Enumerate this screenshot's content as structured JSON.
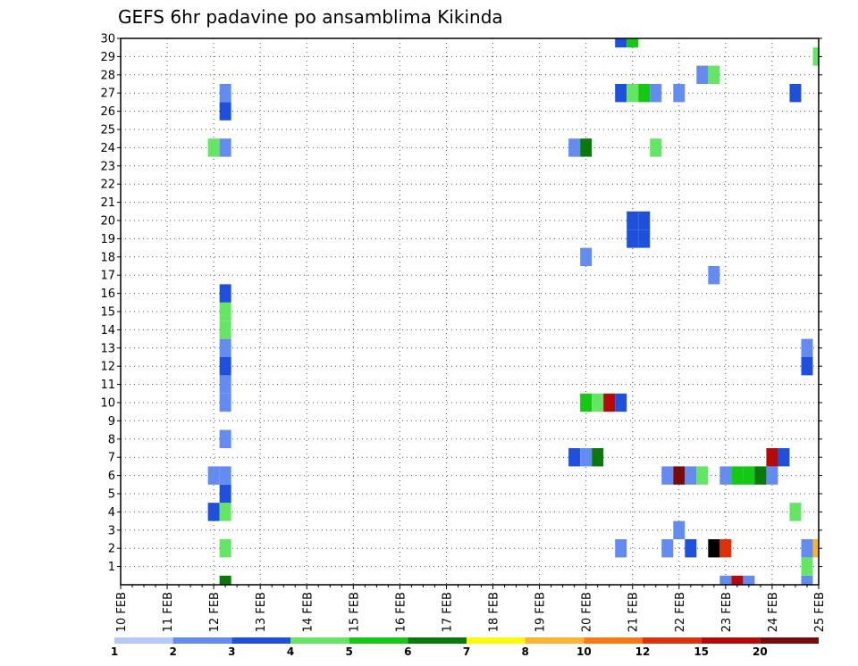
{
  "chart_data": {
    "type": "heatmap",
    "title": "GEFS 6hr padavine po ansamblima Kikinda",
    "x_ticks": [
      "10 FEB",
      "11 FEB",
      "12 FEB",
      "13 FEB",
      "14 FEB",
      "15 FEB",
      "16 FEB",
      "17 FEB",
      "18 FEB",
      "19 FEB",
      "20 FEB",
      "21 FEB",
      "22 FEB",
      "23 FEB",
      "24 FEB",
      "25 FEB"
    ],
    "x_range_days": [
      10,
      25
    ],
    "y_ticks": [
      "1",
      "2",
      "3",
      "4",
      "5",
      "6",
      "7",
      "8",
      "9",
      "10",
      "11",
      "12",
      "13",
      "14",
      "15",
      "16",
      "17",
      "18",
      "19",
      "20",
      "21",
      "22",
      "23",
      "24",
      "25",
      "26",
      "27",
      "28",
      "29",
      "30"
    ],
    "y_range": [
      0,
      30
    ],
    "grid": true,
    "colorbar": {
      "labels": [
        "1",
        "2",
        "3",
        "4",
        "5",
        "6",
        "7",
        "8",
        "10",
        "12",
        "15",
        "20"
      ],
      "colors": [
        "#b4c8fa",
        "#648cf0",
        "#1e50dc",
        "#64e664",
        "#14c814",
        "#0a780a",
        "#fafa0a",
        "#fab432",
        "#fa7814",
        "#dc320a",
        "#b40a0a",
        "#780a0a"
      ]
    },
    "cells": [
      [
        12.25,
        0,
        5
      ],
      [
        23.0,
        0,
        1
      ],
      [
        23.25,
        0,
        10
      ],
      [
        23.5,
        0,
        1
      ],
      [
        24.75,
        0,
        1
      ],
      [
        24.75,
        1,
        3
      ],
      [
        12.25,
        2,
        3
      ],
      [
        20.75,
        2,
        1
      ],
      [
        21.75,
        2,
        1
      ],
      [
        22.25,
        2,
        2
      ],
      [
        22.75,
        2,
        12
      ],
      [
        23.0,
        2,
        9
      ],
      [
        24.75,
        2,
        1
      ],
      [
        25.0,
        2,
        7
      ],
      [
        22.0,
        3,
        1
      ],
      [
        12.0,
        4,
        2
      ],
      [
        12.25,
        4,
        3
      ],
      [
        24.5,
        4,
        3
      ],
      [
        12.25,
        5,
        2
      ],
      [
        12.0,
        6,
        1
      ],
      [
        12.25,
        6,
        1
      ],
      [
        21.75,
        6,
        1
      ],
      [
        22.0,
        6,
        11
      ],
      [
        22.25,
        6,
        1
      ],
      [
        22.5,
        6,
        3
      ],
      [
        23.0,
        6,
        1
      ],
      [
        23.25,
        6,
        4
      ],
      [
        23.5,
        6,
        4
      ],
      [
        23.75,
        6,
        5
      ],
      [
        24.0,
        6,
        1
      ],
      [
        19.75,
        7,
        2
      ],
      [
        20.0,
        7,
        1
      ],
      [
        20.25,
        7,
        5
      ],
      [
        24.0,
        7,
        10
      ],
      [
        24.25,
        7,
        2
      ],
      [
        12.25,
        8,
        1
      ],
      [
        12.25,
        10,
        1
      ],
      [
        20.0,
        10,
        4
      ],
      [
        20.25,
        10,
        3
      ],
      [
        20.5,
        10,
        10
      ],
      [
        20.75,
        10,
        2
      ],
      [
        12.25,
        11,
        1
      ],
      [
        12.25,
        12,
        2
      ],
      [
        24.75,
        12,
        2
      ],
      [
        12.25,
        13,
        1
      ],
      [
        24.75,
        13,
        1
      ],
      [
        12.25,
        14,
        3
      ],
      [
        12.25,
        15,
        3
      ],
      [
        12.25,
        16,
        2
      ],
      [
        22.75,
        17,
        1
      ],
      [
        20.0,
        18,
        1
      ],
      [
        21.0,
        19,
        2
      ],
      [
        21.25,
        19,
        2
      ],
      [
        21.0,
        20,
        2
      ],
      [
        21.25,
        20,
        2
      ],
      [
        12.0,
        24,
        3
      ],
      [
        12.25,
        24,
        1
      ],
      [
        19.75,
        24,
        1
      ],
      [
        20.0,
        24,
        5
      ],
      [
        21.5,
        24,
        3
      ],
      [
        12.25,
        26,
        2
      ],
      [
        12.25,
        27,
        1
      ],
      [
        20.75,
        27,
        2
      ],
      [
        21.0,
        27,
        3
      ],
      [
        21.25,
        27,
        4
      ],
      [
        21.5,
        27,
        1
      ],
      [
        22.0,
        27,
        1
      ],
      [
        24.5,
        27,
        2
      ],
      [
        22.5,
        28,
        1
      ],
      [
        22.75,
        28,
        3
      ],
      [
        25.0,
        29,
        3
      ],
      [
        20.75,
        30,
        2
      ],
      [
        21.0,
        30,
        4
      ]
    ]
  }
}
